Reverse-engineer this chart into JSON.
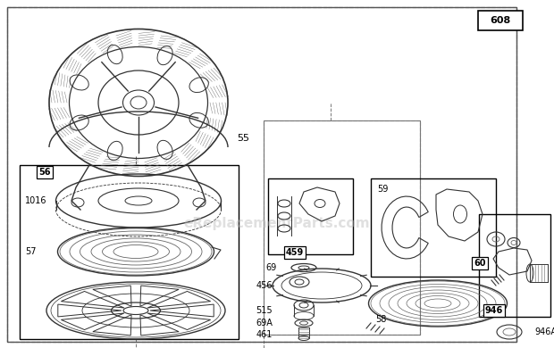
{
  "bg_color": "#ffffff",
  "watermark": "eReplacementParts.com",
  "watermark_color": "#bbbbbb",
  "watermark_alpha": 0.45,
  "figsize": [
    6.2,
    3.9
  ],
  "dpi": 100
}
